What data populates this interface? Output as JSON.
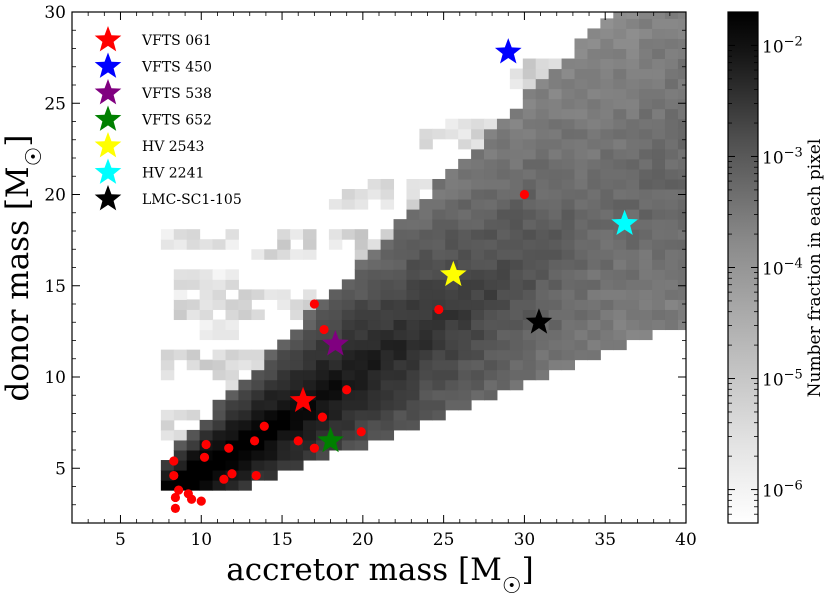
{
  "chart_data": {
    "type": "heatmap",
    "title": "",
    "xlabel": "accretor mass [M☉]",
    "ylabel": "donor mass [M☉]",
    "xlim": [
      2,
      40
    ],
    "ylim": [
      2,
      30
    ],
    "xticks": [
      5,
      10,
      15,
      20,
      25,
      30,
      35,
      40
    ],
    "yticks": [
      5,
      10,
      15,
      20,
      25,
      30
    ],
    "colorbar": {
      "label": "Number fraction in each pixel",
      "scale": "log",
      "range": [
        5e-07,
        0.02
      ],
      "tick_labels": [
        {
          "base": "10",
          "exp": "−2",
          "value": 0.01
        },
        {
          "base": "10",
          "exp": "−3",
          "value": 0.001
        },
        {
          "base": "10",
          "exp": "−4",
          "value": 0.0001
        },
        {
          "base": "10",
          "exp": "−5",
          "value": 1e-05
        },
        {
          "base": "10",
          "exp": "−6",
          "value": 1e-06
        }
      ],
      "colormap": "Greys"
    },
    "legend_placement": "top-left",
    "stars": [
      {
        "name": "VFTS 061",
        "color": "#ff0000",
        "x": 16.3,
        "y": 8.7
      },
      {
        "name": "VFTS 450",
        "color": "#0000ff",
        "x": 29.0,
        "y": 27.8
      },
      {
        "name": "VFTS 538",
        "color": "#800080",
        "x": 18.3,
        "y": 11.8
      },
      {
        "name": "VFTS 652",
        "color": "#008000",
        "x": 18.0,
        "y": 6.5
      },
      {
        "name": "HV 2543",
        "color": "#ffff00",
        "x": 25.6,
        "y": 15.6
      },
      {
        "name": "HV 2241",
        "color": "#00ffff",
        "x": 36.2,
        "y": 18.4
      },
      {
        "name": "LMC-SC1-105",
        "color": "#000000",
        "x": 30.9,
        "y": 13.0
      }
    ],
    "red_points": {
      "color": "#ff0000",
      "points": [
        [
          30.0,
          20.0
        ],
        [
          24.7,
          13.7
        ],
        [
          17.0,
          14.0
        ],
        [
          17.6,
          12.6
        ],
        [
          19.0,
          9.3
        ],
        [
          17.5,
          7.8
        ],
        [
          13.9,
          7.3
        ],
        [
          16.0,
          6.5
        ],
        [
          19.9,
          7.0
        ],
        [
          17.0,
          6.1
        ],
        [
          13.3,
          6.5
        ],
        [
          10.3,
          6.3
        ],
        [
          11.7,
          6.1
        ],
        [
          10.2,
          5.6
        ],
        [
          8.3,
          5.4
        ],
        [
          11.9,
          4.7
        ],
        [
          13.4,
          4.6
        ],
        [
          11.4,
          4.4
        ],
        [
          8.3,
          4.6
        ],
        [
          9.2,
          3.6
        ],
        [
          8.6,
          3.8
        ],
        [
          9.4,
          3.3
        ],
        [
          8.4,
          3.4
        ],
        [
          10.0,
          3.2
        ],
        [
          8.4,
          2.8
        ]
      ]
    }
  }
}
